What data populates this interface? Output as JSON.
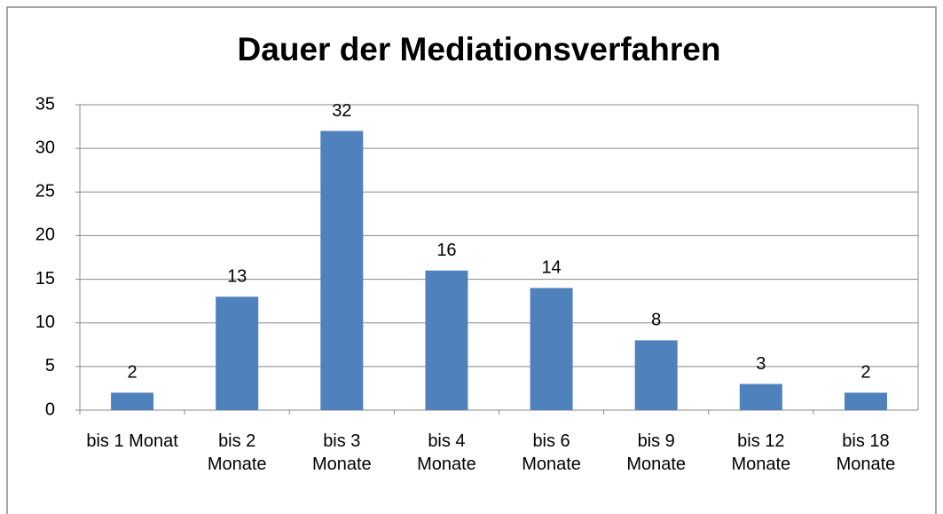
{
  "chart_data": {
    "type": "bar",
    "title": "Dauer der Mediationsverfahren",
    "categories": [
      "bis 1 Monat",
      "bis 2 Monate",
      "bis 3 Monate",
      "bis 4 Monate",
      "bis 6 Monate",
      "bis 9 Monate",
      "bis 12 Monate",
      "bis 18 Monate"
    ],
    "values": [
      2,
      13,
      32,
      16,
      14,
      8,
      3,
      2
    ],
    "color": "#4f81bd",
    "ylim": [
      0,
      35
    ],
    "yticks": [
      0,
      5,
      10,
      15,
      20,
      25,
      30,
      35
    ],
    "grid": true
  }
}
